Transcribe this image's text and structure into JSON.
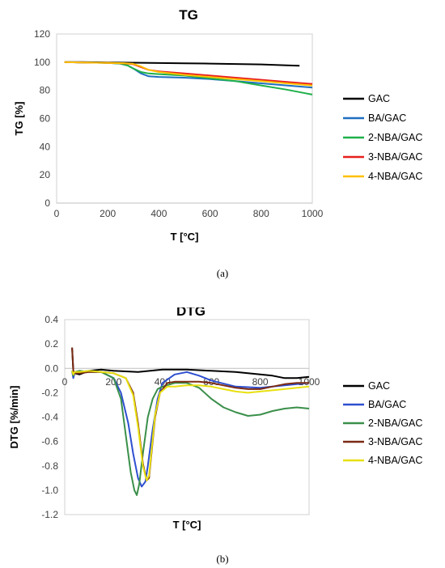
{
  "colors": {
    "GAC": "#000000",
    "BA/GAC": "#1f6fc0",
    "2-NBA/GAC": "#1fb04a",
    "3-NBA/GAC": "#e81e1e",
    "4-NBA/GAC": "#ffc000"
  },
  "dtg_colors": {
    "GAC": "#000000",
    "BA/GAC": "#2e4fd0",
    "2-NBA/GAC": "#3a8f4a",
    "3-NBA/GAC": "#7a2a12",
    "4-NBA/GAC": "#e8e010"
  },
  "captions": {
    "a": "(a)",
    "b": "(b)"
  },
  "chart_data": [
    {
      "type": "line",
      "title": "TG",
      "xlabel": "T [°C]",
      "ylabel": "TG [%]",
      "xlim": [
        0,
        1000
      ],
      "ylim": [
        0,
        120
      ],
      "xticks": [
        "0",
        "200",
        "400",
        "600",
        "800",
        "1000"
      ],
      "yticks": [
        "0",
        "20",
        "40",
        "60",
        "80",
        "100",
        "120"
      ],
      "grid": false,
      "legend": "right",
      "series": [
        {
          "name": "GAC",
          "x": [
            30,
            100,
            200,
            300,
            400,
            500,
            600,
            700,
            800,
            900,
            950
          ],
          "y": [
            100,
            100,
            99.8,
            99.6,
            99.4,
            99.2,
            99,
            98.7,
            98.4,
            97.8,
            97.5
          ]
        },
        {
          "name": "BA/GAC",
          "x": [
            30,
            100,
            200,
            250,
            280,
            300,
            330,
            360,
            400,
            500,
            600,
            700,
            800,
            900,
            1000
          ],
          "y": [
            100,
            99.8,
            99.5,
            99,
            97.5,
            95.5,
            92,
            90,
            89.5,
            89,
            88,
            86.5,
            85,
            83.5,
            82
          ]
        },
        {
          "name": "2-NBA/GAC",
          "x": [
            30,
            100,
            200,
            250,
            280,
            300,
            330,
            360,
            400,
            500,
            600,
            700,
            800,
            900,
            1000
          ],
          "y": [
            100,
            99.8,
            99.5,
            99,
            97.5,
            95.5,
            93,
            92,
            91.5,
            90.5,
            88.5,
            86.5,
            83.5,
            80.5,
            77
          ]
        },
        {
          "name": "3-NBA/GAC",
          "x": [
            30,
            100,
            200,
            260,
            300,
            330,
            360,
            400,
            500,
            600,
            700,
            800,
            900,
            1000
          ],
          "y": [
            100,
            99.8,
            99.5,
            99.2,
            98.5,
            96.5,
            94.5,
            93.5,
            92,
            90.5,
            89,
            87.5,
            86,
            84.5
          ]
        },
        {
          "name": "4-NBA/GAC",
          "x": [
            30,
            100,
            200,
            260,
            300,
            330,
            360,
            400,
            500,
            600,
            700,
            800,
            900,
            1000
          ],
          "y": [
            100,
            99.8,
            99.5,
            99.3,
            98.8,
            97,
            94.5,
            93,
            91,
            89.5,
            88,
            86.5,
            85,
            83.5
          ]
        }
      ]
    },
    {
      "type": "line",
      "title": "DTG",
      "xlabel": "T [°C]",
      "ylabel": "DTG [%/min]",
      "xlim": [
        0,
        1000
      ],
      "ylim": [
        -1.2,
        0.4
      ],
      "xticks": [
        "0",
        "200",
        "400",
        "600",
        "800",
        "1000"
      ],
      "yticks": [
        "-1.2",
        "-1.0",
        "-0.8",
        "-0.6",
        "-0.4",
        "-0.2",
        "0.0",
        "0.2",
        "0.4"
      ],
      "grid": false,
      "legend": "right",
      "series": [
        {
          "name": "GAC",
          "x": [
            30,
            35,
            40,
            60,
            100,
            150,
            200,
            300,
            400,
            500,
            600,
            700,
            800,
            850,
            900,
            950,
            1000
          ],
          "y": [
            0.17,
            -0.02,
            -0.04,
            -0.05,
            -0.02,
            -0.01,
            -0.02,
            -0.03,
            -0.01,
            -0.01,
            -0.02,
            -0.03,
            -0.05,
            -0.06,
            -0.08,
            -0.08,
            -0.07
          ]
        },
        {
          "name": "BA/GAC",
          "x": [
            30,
            35,
            40,
            60,
            100,
            150,
            200,
            230,
            260,
            280,
            300,
            315,
            330,
            340,
            360,
            380,
            400,
            450,
            500,
            550,
            600,
            700,
            800,
            900,
            1000
          ],
          "y": [
            -0.02,
            -0.08,
            -0.04,
            -0.03,
            -0.02,
            -0.03,
            -0.08,
            -0.2,
            -0.45,
            -0.7,
            -0.9,
            -0.97,
            -0.93,
            -0.8,
            -0.5,
            -0.25,
            -0.12,
            -0.05,
            -0.03,
            -0.06,
            -0.1,
            -0.15,
            -0.16,
            -0.14,
            -0.12
          ]
        },
        {
          "name": "2-NBA/GAC",
          "x": [
            30,
            35,
            40,
            60,
            100,
            150,
            200,
            230,
            250,
            270,
            285,
            295,
            305,
            320,
            340,
            360,
            380,
            400,
            450,
            500,
            550,
            600,
            650,
            700,
            750,
            800,
            850,
            900,
            950,
            1000
          ],
          "y": [
            -0.02,
            -0.06,
            -0.03,
            -0.02,
            -0.03,
            -0.03,
            -0.08,
            -0.25,
            -0.55,
            -0.85,
            -1.0,
            -1.04,
            -0.95,
            -0.7,
            -0.4,
            -0.25,
            -0.17,
            -0.15,
            -0.12,
            -0.12,
            -0.16,
            -0.25,
            -0.32,
            -0.36,
            -0.39,
            -0.38,
            -0.35,
            -0.33,
            -0.32,
            -0.33
          ]
        },
        {
          "name": "3-NBA/GAC",
          "x": [
            30,
            35,
            40,
            60,
            100,
            150,
            200,
            250,
            280,
            300,
            320,
            335,
            345,
            355,
            370,
            390,
            420,
            450,
            500,
            550,
            600,
            650,
            700,
            750,
            800,
            850,
            900,
            950,
            1000
          ],
          "y": [
            0.17,
            -0.02,
            -0.04,
            -0.04,
            -0.03,
            -0.03,
            -0.04,
            -0.08,
            -0.2,
            -0.45,
            -0.78,
            -0.92,
            -0.9,
            -0.7,
            -0.4,
            -0.2,
            -0.12,
            -0.11,
            -0.11,
            -0.11,
            -0.12,
            -0.14,
            -0.16,
            -0.17,
            -0.17,
            -0.15,
            -0.13,
            -0.12,
            -0.12
          ]
        },
        {
          "name": "4-NBA/GAC",
          "x": [
            30,
            35,
            40,
            60,
            100,
            150,
            200,
            250,
            280,
            300,
            320,
            335,
            345,
            355,
            370,
            390,
            420,
            450,
            500,
            550,
            600,
            650,
            700,
            750,
            800,
            850,
            900,
            950,
            1000
          ],
          "y": [
            -0.02,
            -0.05,
            -0.03,
            -0.03,
            -0.02,
            -0.03,
            -0.04,
            -0.08,
            -0.22,
            -0.48,
            -0.8,
            -0.92,
            -0.88,
            -0.68,
            -0.38,
            -0.2,
            -0.15,
            -0.15,
            -0.14,
            -0.14,
            -0.15,
            -0.17,
            -0.19,
            -0.2,
            -0.19,
            -0.18,
            -0.17,
            -0.16,
            -0.15
          ]
        }
      ]
    }
  ]
}
